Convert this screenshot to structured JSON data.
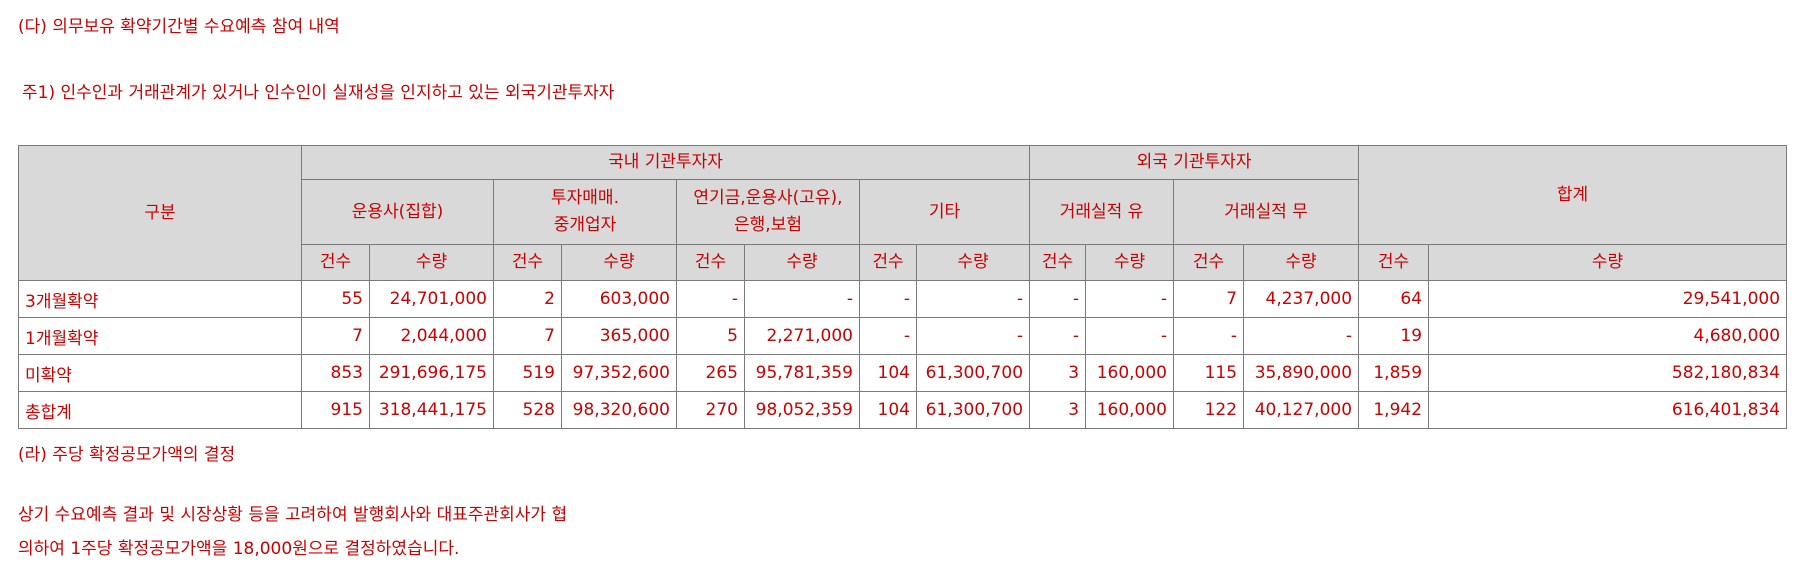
{
  "heading_da": "(다) 의무보유 확약기간별 수요예측 참여 내역",
  "note": "주1) 인수인과 거래관계가 있거나 인수인이 실재성을 인지하고 있는 외국기관투자자",
  "table": {
    "col_category": "구분",
    "group_domestic": "국내 기관투자자",
    "group_foreign": "외국 기관투자자",
    "group_total": "합계",
    "sub_asset_mgmt": "운용사(집합)",
    "sub_invest_line1": "투자매매.",
    "sub_invest_line2": "중개업자",
    "sub_pension_line1": "연기금,운용사(고유),",
    "sub_pension_line2": "은행,보험",
    "sub_other": "기타",
    "sub_track_yes": "거래실적 유",
    "sub_track_no": "거래실적 무",
    "count_label": "건수",
    "qty_label": "수량",
    "rows": [
      {
        "label": "3개월확약",
        "cells": [
          "55",
          "24,701,000",
          "2",
          "603,000",
          "-",
          "-",
          "-",
          "-",
          "-",
          "-",
          "7",
          "4,237,000",
          "64",
          "29,541,000"
        ]
      },
      {
        "label": "1개월확약",
        "cells": [
          "7",
          "2,044,000",
          "7",
          "365,000",
          "5",
          "2,271,000",
          "-",
          "-",
          "-",
          "-",
          "-",
          "-",
          "19",
          "4,680,000"
        ]
      },
      {
        "label": "미확약",
        "cells": [
          "853",
          "291,696,175",
          "519",
          "97,352,600",
          "265",
          "95,781,359",
          "104",
          "61,300,700",
          "3",
          "160,000",
          "115",
          "35,890,000",
          "1,859",
          "582,180,834"
        ]
      },
      {
        "label": "총합계",
        "cells": [
          "915",
          "318,441,175",
          "528",
          "98,320,600",
          "270",
          "98,052,359",
          "104",
          "61,300,700",
          "3",
          "160,000",
          "122",
          "40,127,000",
          "1,942",
          "616,401,834"
        ]
      }
    ]
  },
  "heading_ra": "(라) 주당 확정공모가액의 결정",
  "paragraph_line1": "상기 수요예측 결과 및 시장상황 등을 고려하여 발행회사와 대표주관회사가 협",
  "paragraph_line2": "의하여 1주당 확정공모가액을 18,000원으로 결정하였습니다."
}
